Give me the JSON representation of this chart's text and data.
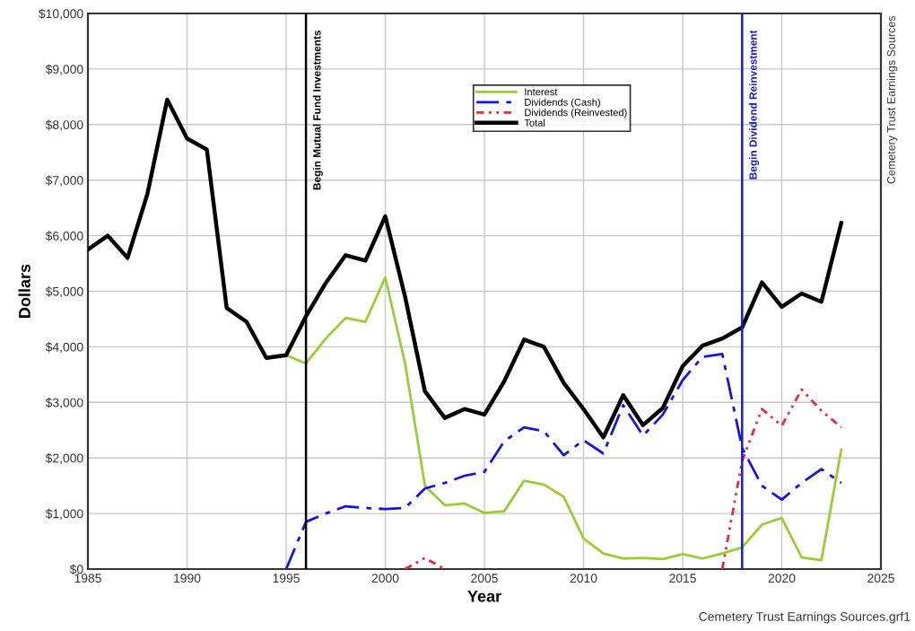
{
  "chart_data": {
    "type": "line",
    "xlabel": "Year",
    "ylabel": "Dollars",
    "x": [
      1985,
      1986,
      1987,
      1988,
      1989,
      1990,
      1991,
      1992,
      1993,
      1994,
      1995,
      1996,
      1997,
      1998,
      1999,
      2000,
      2001,
      2002,
      2003,
      2004,
      2005,
      2006,
      2007,
      2008,
      2009,
      2010,
      2011,
      2012,
      2013,
      2014,
      2015,
      2016,
      2017,
      2018,
      2019,
      2020,
      2021,
      2022,
      2023
    ],
    "series": [
      {
        "name": "Interest",
        "color": "#9acd32",
        "line_style": "solid",
        "values": [
          null,
          null,
          null,
          null,
          null,
          null,
          null,
          null,
          null,
          null,
          3850,
          3700,
          4150,
          4520,
          4450,
          5250,
          3700,
          1500,
          1150,
          1180,
          1010,
          1040,
          1590,
          1520,
          1300,
          550,
          280,
          190,
          200,
          180,
          270,
          190,
          280,
          390,
          800,
          920,
          210,
          160,
          2150
        ]
      },
      {
        "name": "Dividends (Cash)",
        "color": "#1414e6",
        "line_style": "dashed",
        "values": [
          null,
          null,
          null,
          null,
          null,
          null,
          null,
          null,
          null,
          null,
          0,
          850,
          1000,
          1130,
          1100,
          1080,
          1100,
          1450,
          1550,
          1680,
          1750,
          2300,
          2550,
          2480,
          2050,
          2320,
          2080,
          2950,
          2400,
          2780,
          3400,
          3820,
          3870,
          2180,
          1500,
          1250,
          1550,
          1800,
          1550
        ]
      },
      {
        "name": "Dividends (Reinvested)",
        "color": "#e8283c",
        "line_style": "dotted",
        "values": [
          null,
          null,
          null,
          null,
          null,
          null,
          null,
          null,
          null,
          null,
          null,
          null,
          null,
          null,
          null,
          null,
          0,
          200,
          0,
          null,
          null,
          null,
          null,
          null,
          null,
          null,
          null,
          null,
          null,
          null,
          null,
          null,
          0,
          1950,
          2880,
          2580,
          3230,
          2850,
          2550
        ]
      },
      {
        "name": "Total",
        "color": "#000000",
        "line_style": "solid",
        "values": [
          5750,
          6000,
          5600,
          6750,
          8450,
          7750,
          7550,
          4700,
          4450,
          3800,
          3850,
          4550,
          5150,
          5650,
          5550,
          6350,
          4900,
          3200,
          2720,
          2880,
          2780,
          3380,
          4130,
          4000,
          3350,
          2880,
          2370,
          3130,
          2590,
          2900,
          3650,
          4020,
          4150,
          4350,
          5160,
          4720,
          4960,
          4810,
          6230
        ]
      }
    ],
    "xlim": [
      1985,
      2025
    ],
    "xticks": [
      1985,
      1990,
      1995,
      2000,
      2005,
      2010,
      2015,
      2020,
      2025
    ],
    "ylim": [
      0,
      10000
    ],
    "yticks": [
      {
        "value": 0,
        "label": "$0"
      },
      {
        "value": 1000,
        "label": "$1,000"
      },
      {
        "value": 2000,
        "label": "$2,000"
      },
      {
        "value": 3000,
        "label": "$3,000"
      },
      {
        "value": 4000,
        "label": "$4,000"
      },
      {
        "value": 5000,
        "label": "$5,000"
      },
      {
        "value": 6000,
        "label": "$6,000"
      },
      {
        "value": 7000,
        "label": "$7,000"
      },
      {
        "value": 8000,
        "label": "$8,000"
      },
      {
        "value": 9000,
        "label": "$9,000"
      },
      {
        "value": 10000,
        "label": "$10,000"
      }
    ],
    "ref_lines": [
      {
        "axis": "x",
        "value": 1996,
        "label": "Begin Mutual Fund Investments",
        "color": "#000000"
      },
      {
        "axis": "x",
        "value": 2018,
        "label": "Begin Dividend Reinvestment",
        "color": "#1a1ad0"
      }
    ],
    "annotations": [
      "Cemetery Trust Earnings Sources",
      "Cemetery Trust Earnings Sources.grf1"
    ],
    "grid": true,
    "legend": "top",
    "marker": "none"
  }
}
